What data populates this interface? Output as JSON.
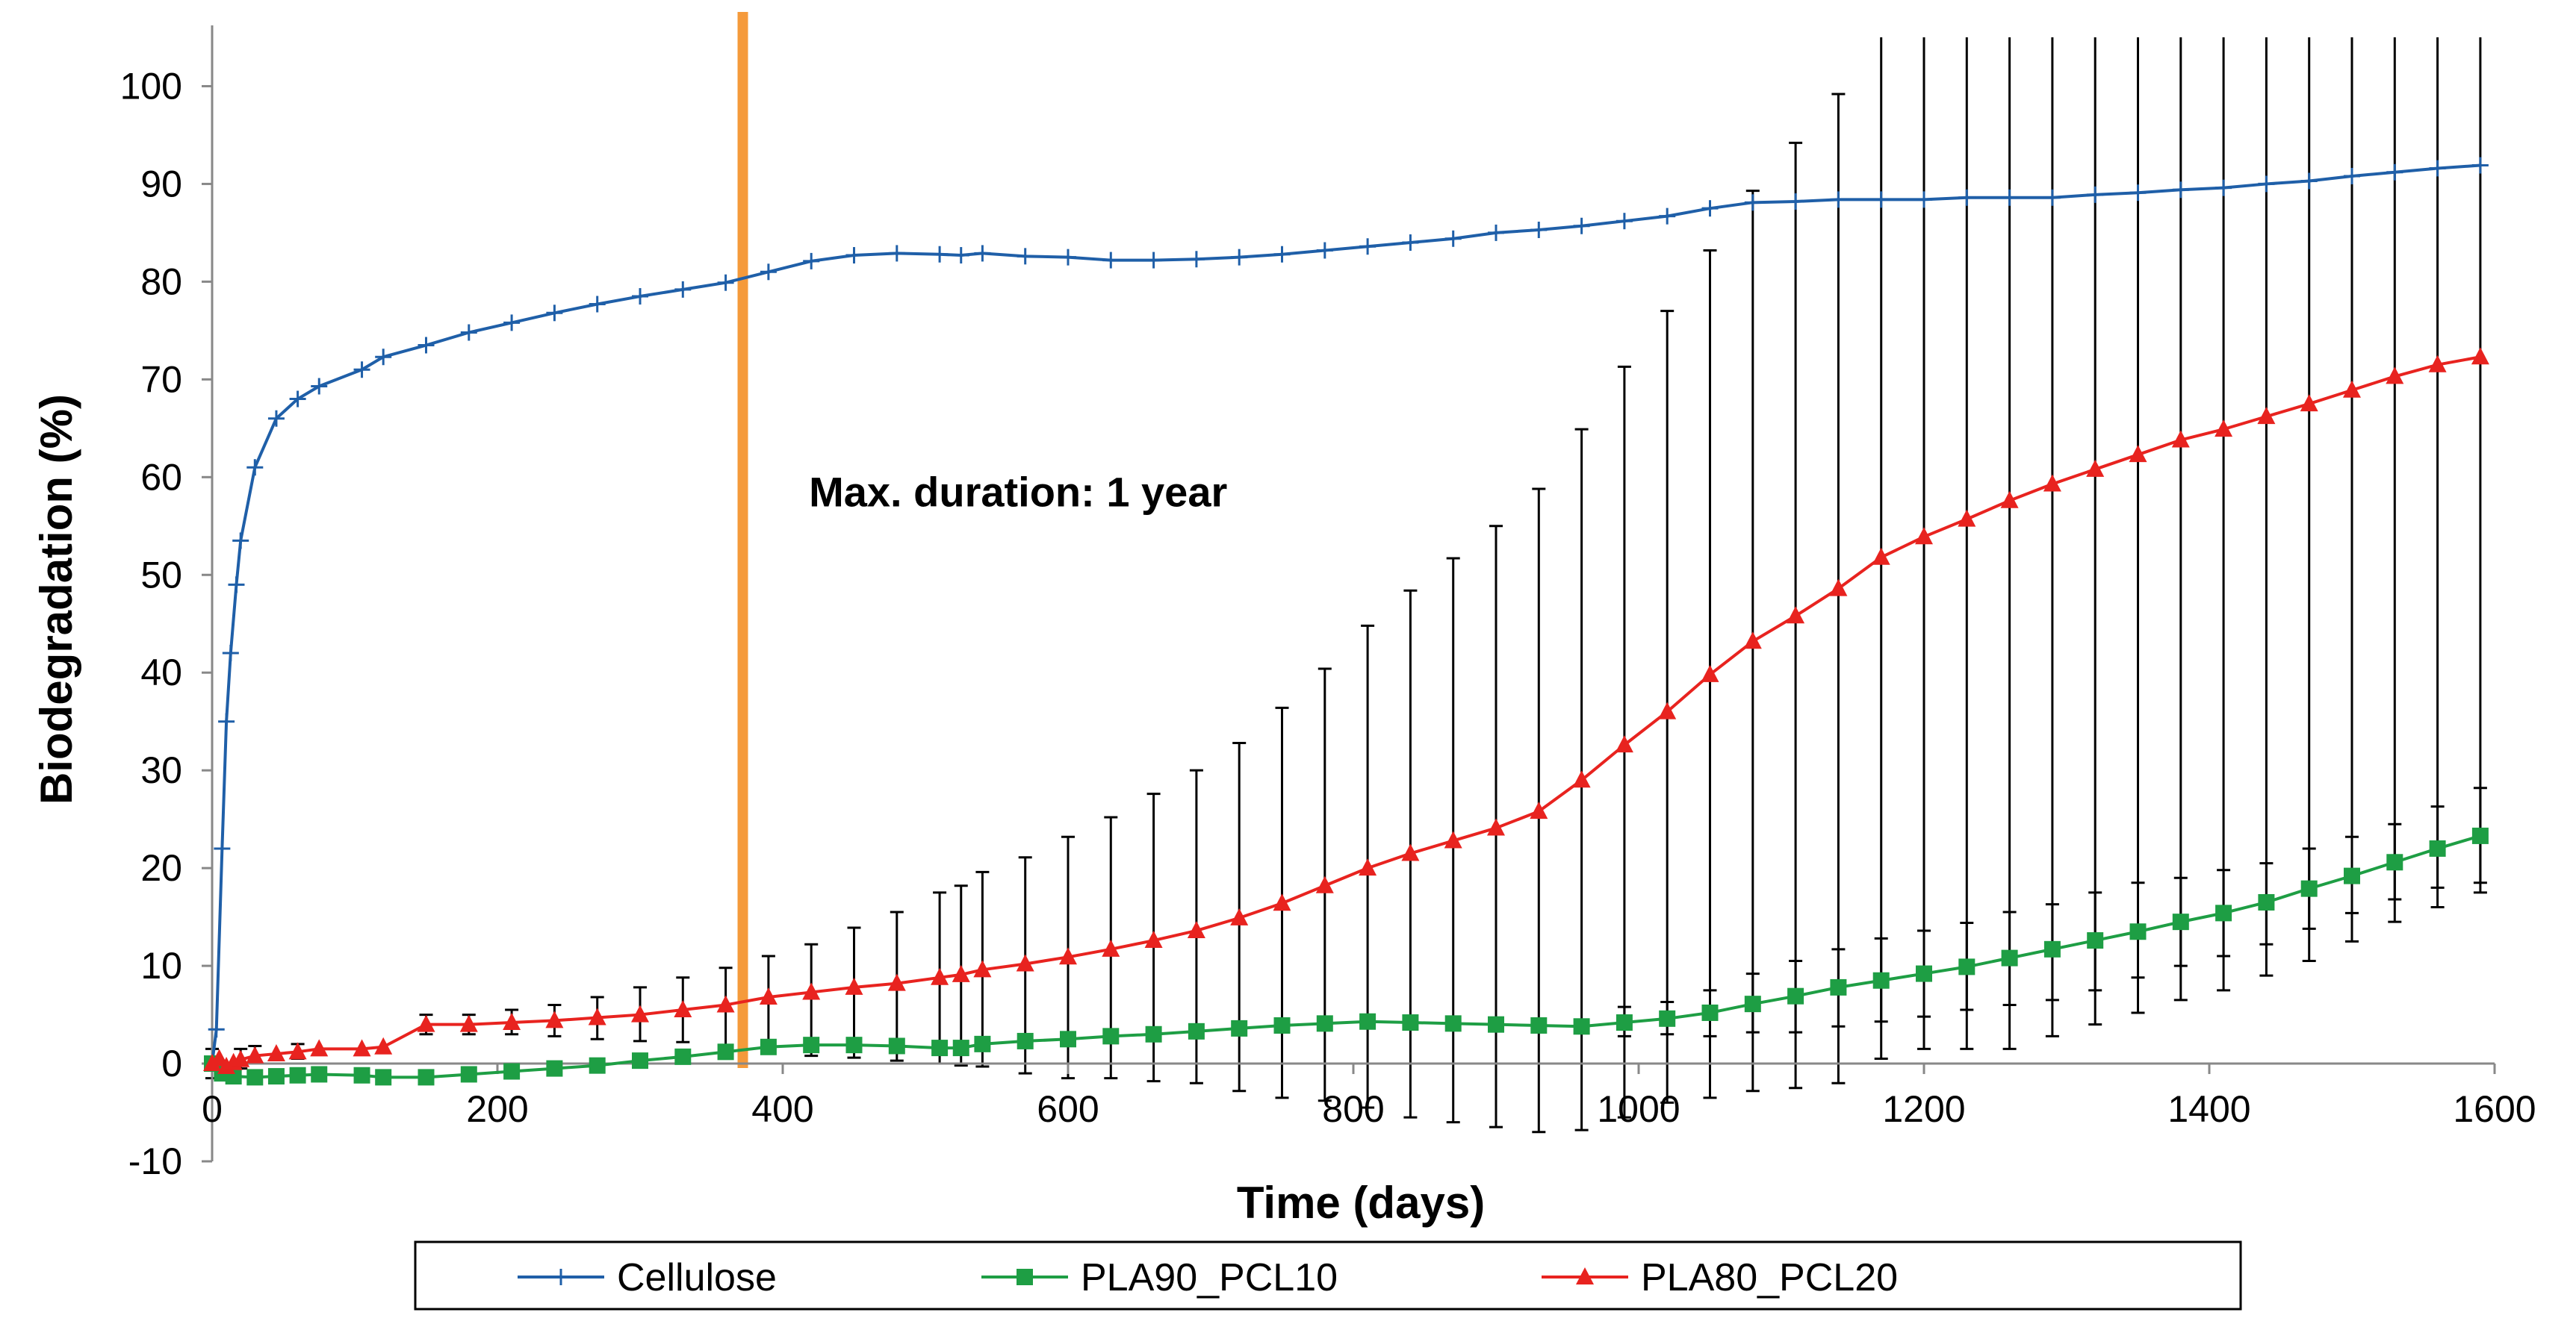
{
  "chart_data": {
    "type": "line",
    "title": "",
    "xlabel": "Time (days)",
    "ylabel": "Biodegradation  (%)",
    "xlim": [
      0,
      1600
    ],
    "ylim": [
      -10,
      105
    ],
    "x_ticks": [
      0,
      200,
      400,
      600,
      800,
      1000,
      1200,
      1400,
      1600
    ],
    "y_ticks": [
      -10,
      0,
      10,
      20,
      30,
      40,
      50,
      60,
      70,
      80,
      90,
      100
    ],
    "x_tick_labels": [
      "0",
      "200",
      "400",
      "600",
      "800",
      "1000",
      "1200",
      "1400",
      "1600"
    ],
    "y_tick_labels": [
      "-10",
      "0",
      "10",
      "20",
      "30",
      "40",
      "50",
      "60",
      "70",
      "80",
      "90",
      "100"
    ],
    "grid": false,
    "legend_position": "bottom",
    "annotations": [
      {
        "text": "Max. duration: 1 year",
        "x": 410,
        "y": 57
      },
      {
        "type": "vertical_line",
        "x": 372,
        "color": "#f59a3b",
        "label": ""
      }
    ],
    "series": [
      {
        "name": "Cellulose",
        "color": "#1f5fa8",
        "marker": "plus",
        "x": [
          0,
          3,
          7,
          10,
          13,
          17,
          20,
          30,
          45,
          60,
          75,
          105,
          120,
          150,
          180,
          210,
          240,
          270,
          300,
          330,
          360,
          390,
          420,
          450,
          480,
          510,
          525,
          540,
          570,
          600,
          630,
          660,
          690,
          720,
          750,
          780,
          810,
          840,
          870,
          900,
          930,
          960,
          990,
          1020,
          1050,
          1080,
          1110,
          1140,
          1170,
          1200,
          1230,
          1260,
          1290,
          1320,
          1350,
          1380,
          1410,
          1440,
          1470,
          1500,
          1530,
          1560,
          1590
        ],
        "y": [
          0,
          3.5,
          22,
          35,
          42,
          49,
          53.5,
          61,
          66,
          68,
          69.3,
          71,
          72.3,
          73.5,
          74.8,
          75.8,
          76.8,
          77.7,
          78.5,
          79.2,
          79.9,
          81,
          82.1,
          82.7,
          82.9,
          82.8,
          82.7,
          82.9,
          82.6,
          82.5,
          82.2,
          82.2,
          82.3,
          82.5,
          82.8,
          83.2,
          83.6,
          84.0,
          84.4,
          85.0,
          85.3,
          85.7,
          86.2,
          86.7,
          87.5,
          88.1,
          88.2,
          88.4,
          88.4,
          88.4,
          88.6,
          88.6,
          88.6,
          88.9,
          89.1,
          89.4,
          89.6,
          90.0,
          90.3,
          90.8,
          91.2,
          91.6,
          91.9
        ]
      },
      {
        "name": "PLA90_PCL10",
        "color": "#1e9e44",
        "marker": "square",
        "x": [
          0,
          7,
          15,
          30,
          45,
          60,
          75,
          105,
          120,
          150,
          180,
          210,
          240,
          270,
          300,
          330,
          360,
          390,
          420,
          450,
          480,
          510,
          525,
          540,
          570,
          600,
          630,
          660,
          690,
          720,
          750,
          780,
          810,
          840,
          870,
          900,
          930,
          960,
          990,
          1020,
          1050,
          1080,
          1110,
          1140,
          1170,
          1200,
          1230,
          1260,
          1290,
          1320,
          1350,
          1380,
          1410,
          1440,
          1470,
          1500,
          1530,
          1560,
          1590
        ],
        "y": [
          0,
          -1.0,
          -1.3,
          -1.4,
          -1.3,
          -1.2,
          -1.1,
          -1.2,
          -1.4,
          -1.4,
          -1.1,
          -0.8,
          -0.5,
          -0.2,
          0.3,
          0.7,
          1.2,
          1.7,
          1.9,
          1.9,
          1.8,
          1.6,
          1.6,
          2.0,
          2.3,
          2.5,
          2.8,
          3.0,
          3.3,
          3.6,
          3.9,
          4.1,
          4.3,
          4.2,
          4.1,
          4.0,
          3.9,
          3.8,
          4.2,
          4.6,
          5.2,
          6.1,
          6.9,
          7.8,
          8.5,
          9.2,
          9.9,
          10.8,
          11.7,
          12.6,
          13.5,
          14.5,
          15.4,
          16.5,
          17.9,
          19.2,
          20.6,
          22.0,
          23.3
        ]
      },
      {
        "name": "PLA80_PCL20",
        "color": "#e8231f",
        "marker": "triangle",
        "x": [
          0,
          5,
          10,
          15,
          20,
          30,
          45,
          60,
          75,
          105,
          120,
          150,
          180,
          210,
          240,
          270,
          300,
          330,
          360,
          390,
          420,
          450,
          480,
          510,
          525,
          540,
          570,
          600,
          630,
          660,
          690,
          720,
          750,
          780,
          810,
          840,
          870,
          900,
          930,
          960,
          990,
          1020,
          1050,
          1080,
          1110,
          1140,
          1170,
          1200,
          1230,
          1260,
          1290,
          1320,
          1350,
          1380,
          1410,
          1440,
          1470,
          1500,
          1530,
          1560,
          1590
        ],
        "y": [
          0,
          0.5,
          -0.3,
          0.1,
          0.4,
          0.8,
          1.0,
          1.2,
          1.5,
          1.5,
          1.7,
          4.0,
          4.0,
          4.2,
          4.4,
          4.7,
          5.0,
          5.5,
          6.0,
          6.8,
          7.3,
          7.8,
          8.2,
          8.8,
          9.1,
          9.6,
          10.2,
          10.9,
          11.7,
          12.6,
          13.6,
          14.9,
          16.4,
          18.2,
          20.0,
          21.5,
          22.8,
          24.1,
          25.8,
          29.0,
          32.6,
          36.0,
          39.8,
          43.2,
          45.8,
          48.6,
          51.8,
          53.9,
          55.7,
          57.6,
          59.3,
          60.8,
          62.3,
          63.8,
          64.9,
          66.2,
          67.5,
          68.9,
          70.3,
          71.5,
          72.3
        ]
      }
    ],
    "error_bars": [
      {
        "series": "PLA80_PCL20",
        "x": [
          0,
          20,
          30,
          60,
          150,
          180,
          210,
          240,
          270,
          300,
          330,
          360,
          390,
          420,
          450,
          480,
          510,
          525,
          540,
          570,
          600,
          630,
          660,
          690,
          720,
          750,
          780,
          810,
          840,
          870,
          900,
          930,
          960,
          990,
          1020,
          1050,
          1080,
          1110,
          1140,
          1170,
          1200,
          1230,
          1260,
          1290,
          1320,
          1350,
          1380,
          1410,
          1440,
          1470,
          1500,
          1530,
          1560,
          1590
        ],
        "lower": [
          -1.5,
          -0.5,
          0,
          0.5,
          3.0,
          3.0,
          3.0,
          2.8,
          2.5,
          2.3,
          2.2,
          1.8,
          1.2,
          0.8,
          0.6,
          0.3,
          0,
          -0.2,
          -0.3,
          -1.0,
          -1.5,
          -1.5,
          -1.8,
          -2.0,
          -2.8,
          -3.5,
          -3.8,
          -4.5,
          -5.5,
          -6.0,
          -6.5,
          -7.0,
          -6.8,
          -5.5,
          -4.0,
          -3.5,
          -2.8,
          -2.5,
          -2.0,
          0.5,
          1.5,
          1.5,
          1.5,
          2.8,
          4.0,
          5.2,
          6.5,
          7.5,
          9.0,
          10.5,
          12.5,
          14.5,
          16.0,
          17.5
        ],
        "upper": [
          1.5,
          1.5,
          1.8,
          2.0,
          5.0,
          5.0,
          5.5,
          6.0,
          6.8,
          7.8,
          8.8,
          9.8,
          11.0,
          12.2,
          13.9,
          15.5,
          17.5,
          18.2,
          19.6,
          21.1,
          23.2,
          25.2,
          27.6,
          30.0,
          32.8,
          36.4,
          40.4,
          44.8,
          48.4,
          51.7,
          55.0,
          58.8,
          64.9,
          71.3,
          77.0,
          83.2,
          89.3,
          94.2,
          99.2,
          105,
          105,
          105,
          105,
          105,
          105,
          105,
          105,
          105,
          105,
          105,
          105,
          105,
          105,
          105
        ]
      },
      {
        "series": "PLA90_PCL10",
        "x": [
          990,
          1020,
          1050,
          1080,
          1110,
          1140,
          1170,
          1200,
          1230,
          1260,
          1290,
          1320,
          1350,
          1380,
          1410,
          1440,
          1470,
          1500,
          1530,
          1560,
          1590
        ],
        "lower": [
          2.8,
          3.0,
          2.8,
          3.2,
          3.2,
          3.8,
          4.3,
          4.8,
          5.5,
          6.0,
          6.5,
          7.5,
          8.8,
          10.0,
          11.0,
          12.2,
          13.8,
          15.4,
          16.8,
          18.0,
          18.5
        ],
        "upper": [
          5.8,
          6.3,
          7.5,
          9.2,
          10.5,
          11.7,
          12.8,
          13.6,
          14.4,
          15.5,
          16.3,
          17.5,
          18.5,
          19.0,
          19.8,
          20.5,
          22.0,
          23.2,
          24.5,
          26.3,
          28.2
        ]
      }
    ]
  }
}
